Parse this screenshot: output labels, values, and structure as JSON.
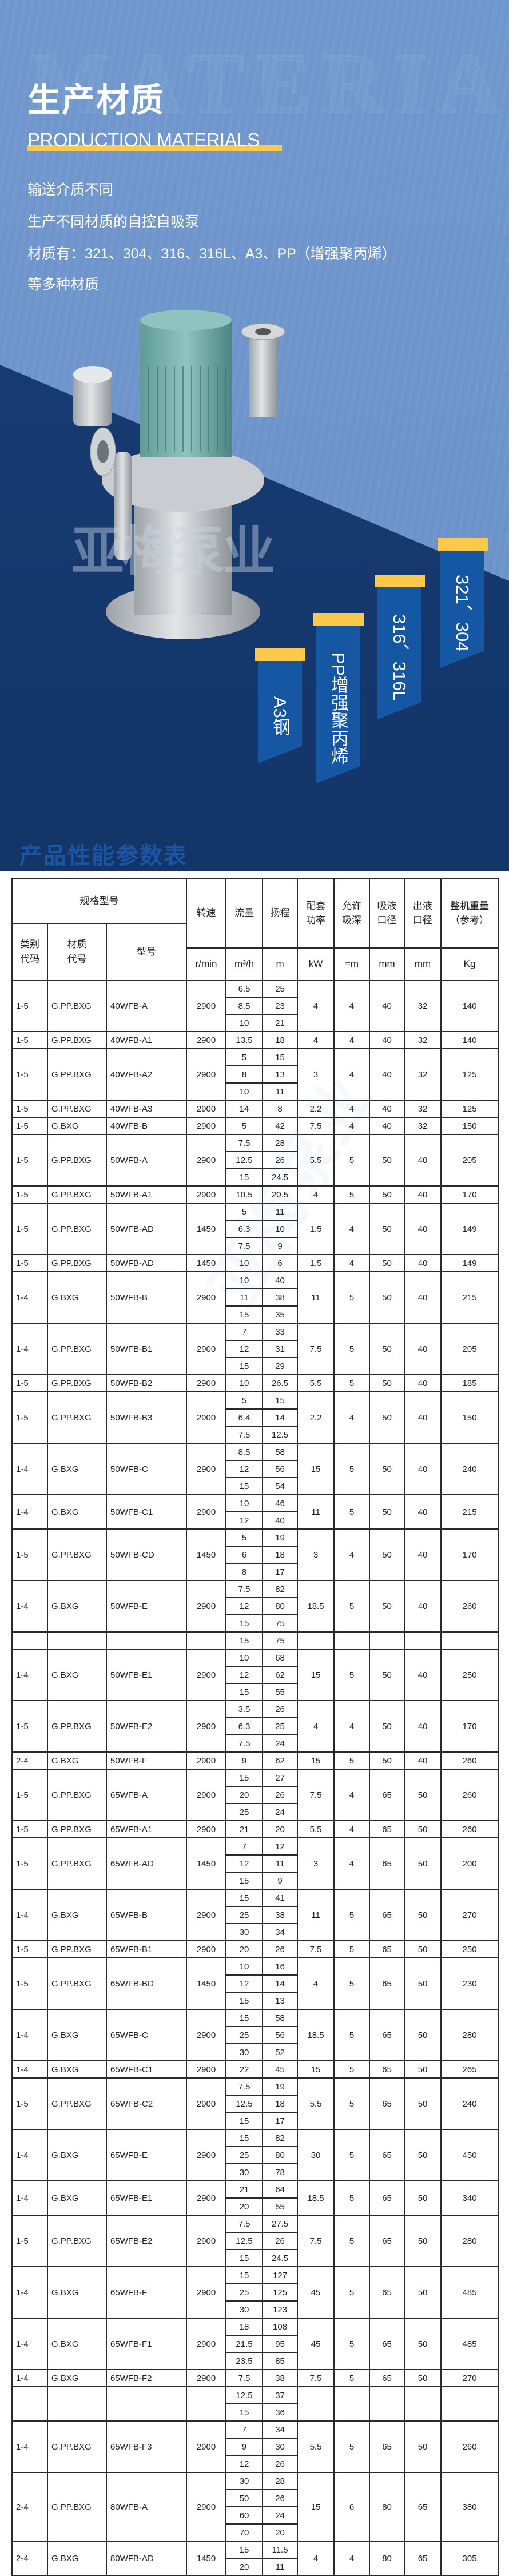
{
  "hero": {
    "watermark": "MATERIAL",
    "title": "生产材质",
    "subtitle": "PRODUCTION MATERIALS",
    "lines": [
      "输送介质不同",
      "生产不同材质的自控自吸泵",
      "材质有：321、304、316、316L、A3、PP（增强聚丙烯）",
      "等多种材质"
    ],
    "logo_watermark": "亚梅泵业",
    "tags": [
      "321、304",
      "316、316L",
      "PP增强聚丙烯",
      "A3钢"
    ],
    "colors": {
      "background": "#6f96cc",
      "dark": "#163a70",
      "accent": "#fdc94a",
      "tag": "#1557a3"
    }
  },
  "table": {
    "title": "产品性能参数表",
    "header": {
      "spec": "规格型号",
      "speed": "转速",
      "flow": "流量",
      "head": "扬程",
      "power": "配套功率",
      "suction_lift": "允许吸深",
      "inlet": "吸液口径",
      "outlet": "出液口径",
      "weight": "整机重量（参考）",
      "category": "类别代码",
      "material": "材质代号",
      "model": "型号",
      "units": {
        "speed": "r/min",
        "flow": "m³/h",
        "head": "m",
        "power": "kW",
        "suction_lift": "=m",
        "inlet": "mm",
        "outlet": "mm",
        "weight": "Kg"
      }
    },
    "rows": [
      {
        "cat": "1-5",
        "mat": "G.PP.BXG",
        "model": "40WFB-A",
        "speed": "2900",
        "points": [
          [
            "6.5",
            "25"
          ],
          [
            "8.5",
            "23"
          ],
          [
            "10",
            "21"
          ]
        ],
        "power": "4",
        "lift": "4",
        "inlet": "40",
        "outlet": "32",
        "weight": "140"
      },
      {
        "cat": "1-5",
        "mat": "G.PP.BXG",
        "model": "40WFB-A1",
        "speed": "2900",
        "points": [
          [
            "13.5",
            "18"
          ]
        ],
        "power": "4",
        "lift": "4",
        "inlet": "40",
        "outlet": "32",
        "weight": "140"
      },
      {
        "cat": "1-5",
        "mat": "G.PP.BXG",
        "model": "40WFB-A2",
        "speed": "2900",
        "points": [
          [
            "5",
            "15"
          ],
          [
            "8",
            "13"
          ],
          [
            "10",
            "11"
          ]
        ],
        "power": "3",
        "lift": "4",
        "inlet": "40",
        "outlet": "32",
        "weight": "125"
      },
      {
        "cat": "1-5",
        "mat": "G.PP.BXG",
        "model": "40WFB-A3",
        "speed": "2900",
        "points": [
          [
            "14",
            "8"
          ]
        ],
        "power": "2.2",
        "lift": "4",
        "inlet": "40",
        "outlet": "32",
        "weight": "125"
      },
      {
        "cat": "1-5",
        "mat": "G.BXG",
        "model": "40WFB-B",
        "speed": "2900",
        "points": [
          [
            "5",
            "42"
          ]
        ],
        "power": "7.5",
        "lift": "4",
        "inlet": "40",
        "outlet": "32",
        "weight": "150"
      },
      {
        "cat": "1-5",
        "mat": "G.PP.BXG",
        "model": "50WFB-A",
        "speed": "2900",
        "points": [
          [
            "7.5",
            "28"
          ],
          [
            "12.5",
            "26"
          ],
          [
            "15",
            "24.5"
          ]
        ],
        "power": "5.5",
        "lift": "5",
        "inlet": "50",
        "outlet": "40",
        "weight": "205"
      },
      {
        "cat": "1-5",
        "mat": "G.PP.BXG",
        "model": "50WFB-A1",
        "speed": "2900",
        "points": [
          [
            "10.5",
            "20.5"
          ]
        ],
        "power": "4",
        "lift": "5",
        "inlet": "50",
        "outlet": "40",
        "weight": "170"
      },
      {
        "cat": "1-5",
        "mat": "G.PP.BXG",
        "model": "50WFB-AD",
        "speed": "1450",
        "points": [
          [
            "5",
            "11"
          ],
          [
            "6.3",
            "10"
          ],
          [
            "7.5",
            "9"
          ]
        ],
        "power": "1.5",
        "lift": "4",
        "inlet": "50",
        "outlet": "40",
        "weight": "149"
      },
      {
        "cat": "1-5",
        "mat": "G.PP.BXG",
        "model": "50WFB-AD",
        "speed": "1450",
        "points": [
          [
            "10",
            "6"
          ]
        ],
        "power": "1.5",
        "lift": "4",
        "inlet": "50",
        "outlet": "40",
        "weight": "149"
      },
      {
        "cat": "1-4",
        "mat": "G.BXG",
        "model": "50WFB-B",
        "speed": "2900",
        "points": [
          [
            "10",
            "40"
          ],
          [
            "11",
            "38"
          ],
          [
            "15",
            "35"
          ]
        ],
        "power": "11",
        "lift": "5",
        "inlet": "50",
        "outlet": "40",
        "weight": "215"
      },
      {
        "cat": "1-4",
        "mat": "G.PP.BXG",
        "model": "50WFB-B1",
        "speed": "2900",
        "points": [
          [
            "7",
            "33"
          ],
          [
            "12",
            "31"
          ],
          [
            "15",
            "29"
          ]
        ],
        "power": "7.5",
        "lift": "5",
        "inlet": "50",
        "outlet": "40",
        "weight": "205"
      },
      {
        "cat": "1-5",
        "mat": "G.PP.BXG",
        "model": "50WFB-B2",
        "speed": "2900",
        "points": [
          [
            "10",
            "26.5"
          ]
        ],
        "power": "5.5",
        "lift": "5",
        "inlet": "50",
        "outlet": "40",
        "weight": "185"
      },
      {
        "cat": "1-5",
        "mat": "G.PP.BXG",
        "model": "50WFB-B3",
        "speed": "2900",
        "points": [
          [
            "5",
            "15"
          ],
          [
            "6.4",
            "14"
          ],
          [
            "7.5",
            "12.5"
          ]
        ],
        "power": "2.2",
        "lift": "4",
        "inlet": "50",
        "outlet": "40",
        "weight": "150"
      },
      {
        "cat": "1-4",
        "mat": "G.BXG",
        "model": "50WFB-C",
        "speed": "2900",
        "points": [
          [
            "8.5",
            "58"
          ],
          [
            "12",
            "56"
          ],
          [
            "15",
            "54"
          ]
        ],
        "power": "15",
        "lift": "5",
        "inlet": "50",
        "outlet": "40",
        "weight": "240"
      },
      {
        "cat": "1-4",
        "mat": "G.BXG",
        "model": "50WFB-C1",
        "speed": "2900",
        "points": [
          [
            "10",
            "46"
          ],
          [
            "12",
            "40"
          ]
        ],
        "power": "11",
        "lift": "5",
        "inlet": "50",
        "outlet": "40",
        "weight": "215"
      },
      {
        "cat": "1-5",
        "mat": "G.PP.BXG",
        "model": "50WFB-CD",
        "speed": "1450",
        "points": [
          [
            "5",
            "19"
          ],
          [
            "6",
            "18"
          ],
          [
            "8",
            "17"
          ]
        ],
        "power": "3",
        "lift": "4",
        "inlet": "50",
        "outlet": "40",
        "weight": "170"
      },
      {
        "cat": "1-4",
        "mat": "G.BXG",
        "model": "50WFB-E",
        "speed": "2900",
        "points": [
          [
            "7.5",
            "82"
          ],
          [
            "12",
            "80"
          ],
          [
            "15",
            "75"
          ]
        ],
        "power": "18.5",
        "lift": "5",
        "inlet": "50",
        "outlet": "40",
        "weight": "260"
      },
      {
        "cat": "",
        "mat": "",
        "model": "",
        "speed": "",
        "points": [
          [
            "15",
            "75"
          ]
        ],
        "power": "",
        "lift": "",
        "inlet": "",
        "outlet": "",
        "weight": ""
      },
      {
        "cat": "1-4",
        "mat": "G.BXG",
        "model": "50WFB-E1",
        "speed": "2900",
        "points": [
          [
            "10",
            "68"
          ],
          [
            "12",
            "62"
          ],
          [
            "15",
            "55"
          ]
        ],
        "power": "15",
        "lift": "5",
        "inlet": "50",
        "outlet": "40",
        "weight": "250"
      },
      {
        "cat": "1-5",
        "mat": "G.PP.BXG",
        "model": "50WFB-E2",
        "speed": "2900",
        "points": [
          [
            "3.5",
            "26"
          ],
          [
            "6.3",
            "25"
          ],
          [
            "7.5",
            "24"
          ]
        ],
        "power": "4",
        "lift": "4",
        "inlet": "50",
        "outlet": "40",
        "weight": "170"
      },
      {
        "cat": "2-4",
        "mat": "G.BXG",
        "model": "50WFB-F",
        "speed": "2900",
        "points": [
          [
            "9",
            "62"
          ]
        ],
        "power": "15",
        "lift": "5",
        "inlet": "50",
        "outlet": "40",
        "weight": "260"
      },
      {
        "cat": "1-5",
        "mat": "G.PP.BXG",
        "model": "65WFB-A",
        "speed": "2900",
        "points": [
          [
            "15",
            "27"
          ],
          [
            "20",
            "26"
          ],
          [
            "25",
            "24"
          ]
        ],
        "power": "7.5",
        "lift": "4",
        "inlet": "65",
        "outlet": "50",
        "weight": "260"
      },
      {
        "cat": "1-5",
        "mat": "G.PP.BXG",
        "model": "65WFB-A1",
        "speed": "2900",
        "points": [
          [
            "21",
            "20"
          ]
        ],
        "power": "5.5",
        "lift": "4",
        "inlet": "65",
        "outlet": "50",
        "weight": "260"
      },
      {
        "cat": "1-5",
        "mat": "G.PP.BXG",
        "model": "65WFB-AD",
        "speed": "1450",
        "points": [
          [
            "7",
            "12"
          ],
          [
            "12",
            "11"
          ],
          [
            "15",
            "9"
          ]
        ],
        "power": "3",
        "lift": "4",
        "inlet": "65",
        "outlet": "50",
        "weight": "200"
      },
      {
        "cat": "1-4",
        "mat": "G.BXG",
        "model": "65WFB-B",
        "speed": "2900",
        "points": [
          [
            "15",
            "41"
          ],
          [
            "25",
            "38"
          ],
          [
            "30",
            "34"
          ]
        ],
        "power": "11",
        "lift": "5",
        "inlet": "65",
        "outlet": "50",
        "weight": "270"
      },
      {
        "cat": "1-5",
        "mat": "G.PP.BXG",
        "model": "65WFB-B1",
        "speed": "2900",
        "points": [
          [
            "20",
            "26"
          ]
        ],
        "power": "7.5",
        "lift": "5",
        "inlet": "65",
        "outlet": "50",
        "weight": "250"
      },
      {
        "cat": "1-5",
        "mat": "G.PP.BXG",
        "model": "65WFB-BD",
        "speed": "1450",
        "points": [
          [
            "10",
            "16"
          ],
          [
            "12",
            "14"
          ],
          [
            "15",
            "13"
          ]
        ],
        "power": "4",
        "lift": "5",
        "inlet": "65",
        "outlet": "50",
        "weight": "230"
      },
      {
        "cat": "1-4",
        "mat": "G.BXG",
        "model": "65WFB-C",
        "speed": "2900",
        "points": [
          [
            "15",
            "58"
          ],
          [
            "25",
            "56"
          ],
          [
            "30",
            "52"
          ]
        ],
        "power": "18.5",
        "lift": "5",
        "inlet": "65",
        "outlet": "50",
        "weight": "280"
      },
      {
        "cat": "1-4",
        "mat": "G.BXG",
        "model": "65WFB-C1",
        "speed": "2900",
        "points": [
          [
            "22",
            "45"
          ]
        ],
        "power": "15",
        "lift": "5",
        "inlet": "65",
        "outlet": "50",
        "weight": "265"
      },
      {
        "cat": "1-5",
        "mat": "G.PP.BXG",
        "model": "65WFB-C2",
        "speed": "2900",
        "points": [
          [
            "7.5",
            "19"
          ],
          [
            "12.5",
            "18"
          ],
          [
            "15",
            "17"
          ]
        ],
        "power": "5.5",
        "lift": "5",
        "inlet": "65",
        "outlet": "50",
        "weight": "240"
      },
      {
        "cat": "1-4",
        "mat": "G.BXG",
        "model": "65WFB-E",
        "speed": "2900",
        "points": [
          [
            "15",
            "82"
          ],
          [
            "25",
            "80"
          ],
          [
            "30",
            "78"
          ]
        ],
        "power": "30",
        "lift": "5",
        "inlet": "65",
        "outlet": "50",
        "weight": "450"
      },
      {
        "cat": "1-4",
        "mat": "G.BXG",
        "model": "65WFB-E1",
        "speed": "2900",
        "points": [
          [
            "21",
            "64"
          ],
          [
            "20",
            "55"
          ]
        ],
        "power": "18.5",
        "lift": "5",
        "inlet": "65",
        "outlet": "50",
        "weight": "340"
      },
      {
        "cat": "1-5",
        "mat": "G.PP.BXG",
        "model": "65WFB-E2",
        "speed": "2900",
        "points": [
          [
            "7.5",
            "27.5"
          ],
          [
            "12.5",
            "26"
          ],
          [
            "15",
            "24.5"
          ]
        ],
        "power": "7.5",
        "lift": "5",
        "inlet": "65",
        "outlet": "50",
        "weight": "280"
      },
      {
        "cat": "1-4",
        "mat": "G.BXG",
        "model": "65WFB-F",
        "speed": "2900",
        "points": [
          [
            "15",
            "127"
          ],
          [
            "25",
            "125"
          ],
          [
            "30",
            "123"
          ]
        ],
        "power": "45",
        "lift": "5",
        "inlet": "65",
        "outlet": "50",
        "weight": "485"
      },
      {
        "cat": "1-4",
        "mat": "G.BXG",
        "model": "65WFB-F1",
        "speed": "2900",
        "points": [
          [
            "18",
            "108"
          ],
          [
            "21.5",
            "95"
          ],
          [
            "23.5",
            "85"
          ]
        ],
        "power": "45",
        "lift": "5",
        "inlet": "65",
        "outlet": "50",
        "weight": "485"
      },
      {
        "cat": "1-4",
        "mat": "G.BXG",
        "model": "65WFB-F2",
        "speed": "2900",
        "points": [
          [
            "7.5",
            "38"
          ]
        ],
        "power": "7.5",
        "lift": "5",
        "inlet": "65",
        "outlet": "50",
        "weight": "270"
      },
      {
        "cat": "",
        "mat": "",
        "model": "",
        "speed": "",
        "points": [
          [
            "12.5",
            "37"
          ],
          [
            "15",
            "36"
          ]
        ],
        "power": "",
        "lift": "",
        "inlet": "",
        "outlet": "",
        "weight": ""
      },
      {
        "cat": "1-4",
        "mat": "G.PP.BXG",
        "model": "65WFB-F3",
        "speed": "2900",
        "points": [
          [
            "7",
            "34"
          ],
          [
            "9",
            "30"
          ],
          [
            "12",
            "26"
          ]
        ],
        "power": "5.5",
        "lift": "5",
        "inlet": "65",
        "outlet": "50",
        "weight": "260"
      },
      {
        "cat": "2-4",
        "mat": "G.PP.BXG",
        "model": "80WFB-A",
        "speed": "2900",
        "points": [
          [
            "30",
            "28"
          ],
          [
            "50",
            "26"
          ],
          [
            "60",
            "24"
          ],
          [
            "70",
            "20"
          ]
        ],
        "power": "15",
        "lift": "6",
        "inlet": "80",
        "outlet": "65",
        "weight": "380"
      },
      {
        "cat": "2-4",
        "mat": "G.BXG",
        "model": "80WFB-AD",
        "speed": "1450",
        "points": [
          [
            "15",
            "11.5"
          ],
          [
            "20",
            "11"
          ]
        ],
        "power": "4",
        "lift": "4",
        "inlet": "80",
        "outlet": "65",
        "weight": "305"
      }
    ]
  }
}
